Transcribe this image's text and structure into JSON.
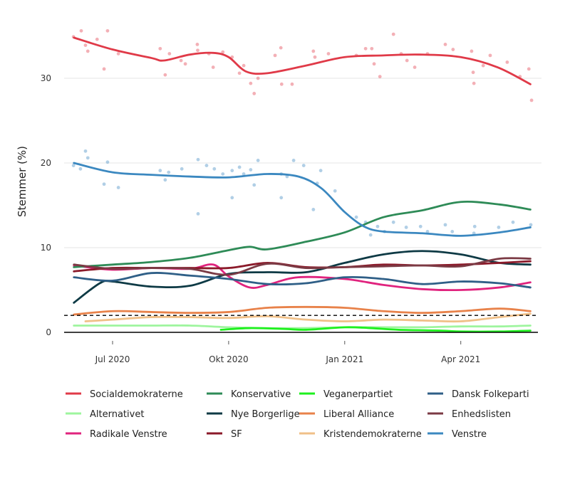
{
  "chart_data": {
    "type": "line",
    "title": "",
    "xlabel": "",
    "ylabel": "Stemmer (%)",
    "x_unit": "months since Jan 2020",
    "xlim": [
      4.7,
      17.1
    ],
    "ylim": [
      -0.5,
      36.5
    ],
    "x_ticks": [
      {
        "x": 6,
        "label": "Jul 2020"
      },
      {
        "x": 9,
        "label": "Okt 2020"
      },
      {
        "x": 12,
        "label": "Jan 2021"
      },
      {
        "x": 15,
        "label": "Apr 2021"
      }
    ],
    "y_ticks": [
      {
        "y": 0,
        "label": "0"
      },
      {
        "y": 10,
        "label": "10"
      },
      {
        "y": 20,
        "label": "20"
      },
      {
        "y": 30,
        "label": "30"
      }
    ],
    "threshold_line": 2,
    "legend_position": "bottom",
    "series": [
      {
        "name": "Socialdemokraterne",
        "color": "#e03a48",
        "trend": [
          [
            5.0,
            34.8
          ],
          [
            6.0,
            33.4
          ],
          [
            7.0,
            32.4
          ],
          [
            7.33,
            32.1
          ],
          [
            8.0,
            32.8
          ],
          [
            8.6,
            33.0
          ],
          [
            9.0,
            32.5
          ],
          [
            9.45,
            30.8
          ],
          [
            10.0,
            30.6
          ],
          [
            11.0,
            31.5
          ],
          [
            12.0,
            32.5
          ],
          [
            13.0,
            32.7
          ],
          [
            13.94,
            32.8
          ],
          [
            15.0,
            32.5
          ],
          [
            15.95,
            31.3
          ],
          [
            16.8,
            29.3
          ]
        ],
        "polls": [
          [
            4.99,
            34.9
          ],
          [
            5.19,
            35.6
          ],
          [
            5.3,
            33.9
          ],
          [
            5.36,
            33.2
          ],
          [
            5.6,
            34.6
          ],
          [
            5.78,
            31.1
          ],
          [
            5.87,
            35.6
          ],
          [
            6.15,
            32.9
          ],
          [
            7.23,
            33.5
          ],
          [
            7.36,
            30.4
          ],
          [
            7.47,
            32.9
          ],
          [
            7.77,
            32.1
          ],
          [
            7.88,
            31.7
          ],
          [
            8.19,
            34.0
          ],
          [
            8.2,
            33.3
          ],
          [
            8.49,
            32.9
          ],
          [
            8.6,
            31.3
          ],
          [
            8.85,
            33.1
          ],
          [
            9.09,
            32.5
          ],
          [
            9.28,
            30.6
          ],
          [
            9.39,
            31.5
          ],
          [
            9.57,
            29.4
          ],
          [
            9.66,
            28.2
          ],
          [
            9.76,
            30.0
          ],
          [
            10.2,
            32.7
          ],
          [
            10.35,
            33.6
          ],
          [
            10.37,
            29.3
          ],
          [
            10.64,
            29.3
          ],
          [
            11.19,
            33.2
          ],
          [
            11.23,
            32.5
          ],
          [
            11.58,
            32.9
          ],
          [
            12.3,
            32.7
          ],
          [
            12.54,
            33.5
          ],
          [
            12.7,
            33.5
          ],
          [
            12.76,
            31.7
          ],
          [
            12.91,
            30.2
          ],
          [
            13.26,
            35.2
          ],
          [
            13.46,
            32.9
          ],
          [
            13.61,
            32.1
          ],
          [
            13.81,
            31.3
          ],
          [
            14.14,
            32.9
          ],
          [
            14.6,
            34.0
          ],
          [
            14.8,
            33.4
          ],
          [
            15.28,
            33.2
          ],
          [
            15.32,
            30.7
          ],
          [
            15.34,
            29.4
          ],
          [
            15.58,
            31.5
          ],
          [
            15.76,
            32.7
          ],
          [
            16.2,
            31.9
          ],
          [
            16.53,
            30.2
          ],
          [
            16.76,
            31.1
          ],
          [
            16.83,
            27.4
          ]
        ]
      },
      {
        "name": "Alternativet",
        "color": "#9ef59e",
        "trend": [
          [
            5.0,
            0.8
          ],
          [
            6.0,
            0.8
          ],
          [
            7.0,
            0.8
          ],
          [
            8.0,
            0.8
          ],
          [
            9.0,
            0.6
          ],
          [
            10.0,
            0.5
          ],
          [
            11.0,
            0.5
          ],
          [
            12.0,
            0.6
          ],
          [
            13.0,
            0.6
          ],
          [
            14.0,
            0.6
          ],
          [
            15.0,
            0.7
          ],
          [
            16.0,
            0.7
          ],
          [
            16.8,
            0.8
          ]
        ]
      },
      {
        "name": "Radikale Venstre",
        "color": "#e0237e",
        "trend": [
          [
            5.0,
            7.9
          ],
          [
            6.0,
            7.4
          ],
          [
            7.0,
            7.6
          ],
          [
            8.0,
            7.5
          ],
          [
            8.6,
            8.0
          ],
          [
            9.0,
            6.6
          ],
          [
            9.54,
            5.3
          ],
          [
            10.0,
            5.6
          ],
          [
            10.8,
            6.5
          ],
          [
            12.0,
            6.3
          ],
          [
            13.0,
            5.6
          ],
          [
            14.0,
            5.1
          ],
          [
            15.0,
            5.0
          ],
          [
            16.0,
            5.3
          ],
          [
            16.8,
            5.9
          ]
        ]
      },
      {
        "name": "Konservative",
        "color": "#2e8b57",
        "trend": [
          [
            5.0,
            7.7
          ],
          [
            6.0,
            8.0
          ],
          [
            7.0,
            8.3
          ],
          [
            8.0,
            8.8
          ],
          [
            9.0,
            9.7
          ],
          [
            9.54,
            10.1
          ],
          [
            10.0,
            9.8
          ],
          [
            11.0,
            10.7
          ],
          [
            12.0,
            11.8
          ],
          [
            13.0,
            13.6
          ],
          [
            14.0,
            14.4
          ],
          [
            15.0,
            15.4
          ],
          [
            16.0,
            15.1
          ],
          [
            16.8,
            14.5
          ]
        ]
      },
      {
        "name": "Nye Borgerlige",
        "color": "#0e3a45",
        "trend": [
          [
            5.0,
            3.5
          ],
          [
            5.67,
            5.8
          ],
          [
            6.0,
            6.0
          ],
          [
            7.0,
            5.4
          ],
          [
            8.0,
            5.5
          ],
          [
            9.0,
            6.9
          ],
          [
            10.0,
            7.1
          ],
          [
            11.0,
            7.1
          ],
          [
            12.0,
            8.2
          ],
          [
            13.0,
            9.2
          ],
          [
            14.0,
            9.6
          ],
          [
            15.0,
            9.2
          ],
          [
            16.0,
            8.2
          ],
          [
            16.8,
            8.0
          ]
        ]
      },
      {
        "name": "SF",
        "color": "#8b1a2a",
        "trend": [
          [
            5.0,
            7.2
          ],
          [
            6.0,
            7.6
          ],
          [
            7.0,
            7.6
          ],
          [
            8.0,
            7.6
          ],
          [
            9.0,
            7.6
          ],
          [
            10.0,
            8.2
          ],
          [
            11.0,
            7.7
          ],
          [
            12.0,
            7.7
          ],
          [
            13.0,
            8.0
          ],
          [
            14.0,
            7.9
          ],
          [
            15.0,
            8.0
          ],
          [
            16.0,
            8.2
          ],
          [
            16.8,
            8.4
          ]
        ]
      },
      {
        "name": "Veganerpartiet",
        "color": "#1ef01e",
        "trend": [
          [
            8.8,
            0.3
          ],
          [
            9.54,
            0.5
          ],
          [
            10.46,
            0.4
          ],
          [
            11.0,
            0.3
          ],
          [
            12.0,
            0.6
          ],
          [
            12.67,
            0.5
          ],
          [
            13.4,
            0.3
          ],
          [
            14.5,
            0.2
          ],
          [
            15.0,
            0.1
          ],
          [
            16.0,
            0.1
          ],
          [
            16.8,
            0.2
          ]
        ]
      },
      {
        "name": "Liberal Alliance",
        "color": "#e8824a",
        "trend": [
          [
            5.0,
            2.1
          ],
          [
            6.0,
            2.5
          ],
          [
            7.0,
            2.4
          ],
          [
            8.0,
            2.3
          ],
          [
            9.0,
            2.4
          ],
          [
            10.0,
            2.9
          ],
          [
            11.0,
            3.0
          ],
          [
            12.0,
            2.9
          ],
          [
            13.0,
            2.5
          ],
          [
            14.0,
            2.3
          ],
          [
            15.0,
            2.5
          ],
          [
            16.0,
            2.8
          ],
          [
            16.8,
            2.5
          ]
        ]
      },
      {
        "name": "Kristendemokraterne",
        "color": "#f0c088",
        "trend": [
          [
            5.3,
            1.3
          ],
          [
            6.0,
            1.5
          ],
          [
            7.0,
            1.8
          ],
          [
            8.0,
            1.8
          ],
          [
            9.0,
            1.7
          ],
          [
            10.0,
            1.9
          ],
          [
            11.0,
            1.5
          ],
          [
            12.0,
            1.3
          ],
          [
            13.0,
            1.5
          ],
          [
            14.0,
            1.4
          ],
          [
            15.0,
            1.3
          ],
          [
            16.0,
            1.8
          ],
          [
            16.8,
            2.2
          ]
        ]
      },
      {
        "name": "Dansk Folkeparti",
        "color": "#2f5f87",
        "trend": [
          [
            5.0,
            6.5
          ],
          [
            6.0,
            6.1
          ],
          [
            7.0,
            7.0
          ],
          [
            8.0,
            6.7
          ],
          [
            9.0,
            6.3
          ],
          [
            10.0,
            5.7
          ],
          [
            11.0,
            5.8
          ],
          [
            12.0,
            6.5
          ],
          [
            13.0,
            6.3
          ],
          [
            14.0,
            5.7
          ],
          [
            15.0,
            6.0
          ],
          [
            16.0,
            5.8
          ],
          [
            16.8,
            5.3
          ]
        ]
      },
      {
        "name": "Enhedslisten",
        "color": "#7b3a44",
        "trend": [
          [
            5.0,
            8.0
          ],
          [
            6.0,
            7.5
          ],
          [
            7.0,
            7.6
          ],
          [
            8.0,
            7.5
          ],
          [
            9.0,
            6.8
          ],
          [
            10.0,
            8.1
          ],
          [
            11.0,
            7.6
          ],
          [
            12.0,
            7.7
          ],
          [
            13.0,
            7.8
          ],
          [
            14.0,
            7.9
          ],
          [
            15.0,
            7.8
          ],
          [
            16.0,
            8.7
          ],
          [
            16.8,
            8.7
          ]
        ]
      },
      {
        "name": "Venstre",
        "color": "#3b88c0",
        "trend": [
          [
            5.0,
            20.0
          ],
          [
            6.0,
            18.9
          ],
          [
            7.0,
            18.6
          ],
          [
            8.0,
            18.4
          ],
          [
            9.0,
            18.3
          ],
          [
            10.0,
            18.7
          ],
          [
            10.8,
            18.4
          ],
          [
            11.4,
            17.0
          ],
          [
            12.0,
            14.2
          ],
          [
            12.5,
            12.5
          ],
          [
            13.0,
            11.9
          ],
          [
            14.0,
            11.7
          ],
          [
            15.0,
            11.4
          ],
          [
            16.0,
            11.8
          ],
          [
            16.8,
            12.4
          ]
        ],
        "polls": [
          [
            4.99,
            19.7
          ],
          [
            5.17,
            19.3
          ],
          [
            5.3,
            21.4
          ],
          [
            5.36,
            20.6
          ],
          [
            5.78,
            17.5
          ],
          [
            5.87,
            20.1
          ],
          [
            6.15,
            17.1
          ],
          [
            7.23,
            19.1
          ],
          [
            7.36,
            18.0
          ],
          [
            7.45,
            18.9
          ],
          [
            7.79,
            19.3
          ],
          [
            8.21,
            14.0
          ],
          [
            8.21,
            20.4
          ],
          [
            8.43,
            19.7
          ],
          [
            8.63,
            19.3
          ],
          [
            8.85,
            18.7
          ],
          [
            9.09,
            15.9
          ],
          [
            9.09,
            19.1
          ],
          [
            9.28,
            19.5
          ],
          [
            9.39,
            18.7
          ],
          [
            9.57,
            19.2
          ],
          [
            9.76,
            20.3
          ],
          [
            9.66,
            17.4
          ],
          [
            10.36,
            15.9
          ],
          [
            10.36,
            18.7
          ],
          [
            10.51,
            18.4
          ],
          [
            10.68,
            20.3
          ],
          [
            10.94,
            19.7
          ],
          [
            11.19,
            14.5
          ],
          [
            11.29,
            17.6
          ],
          [
            11.38,
            19.1
          ],
          [
            11.75,
            16.7
          ],
          [
            12.3,
            13.6
          ],
          [
            12.54,
            13.0
          ],
          [
            12.67,
            11.5
          ],
          [
            12.85,
            12.5
          ],
          [
            13.03,
            11.9
          ],
          [
            13.26,
            13.0
          ],
          [
            13.59,
            12.4
          ],
          [
            13.96,
            12.5
          ],
          [
            14.14,
            11.9
          ],
          [
            14.6,
            12.7
          ],
          [
            14.78,
            11.9
          ],
          [
            15.34,
            11.7
          ],
          [
            15.36,
            12.5
          ],
          [
            15.98,
            12.4
          ],
          [
            16.35,
            13.0
          ],
          [
            16.81,
            12.7
          ]
        ]
      }
    ]
  }
}
